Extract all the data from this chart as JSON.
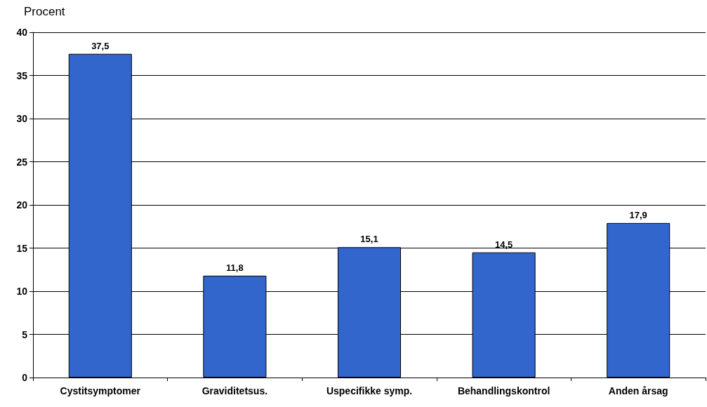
{
  "chart_data": {
    "type": "bar",
    "ylabel": "Procent",
    "categories": [
      "Cystitsymptomer",
      "Graviditetsus.",
      "Uspecifikke symp.",
      "Behandlingskontrol",
      "Anden årsag"
    ],
    "values": [
      37.5,
      11.8,
      15.1,
      14.5,
      17.9
    ],
    "value_labels": [
      "37,5",
      "11,8",
      "15,1",
      "14,5",
      "17,9"
    ],
    "color": "#3366cc",
    "ylim": [
      0,
      40
    ],
    "yticks": [
      0,
      5,
      10,
      15,
      20,
      25,
      30,
      35,
      40
    ],
    "grid": "y"
  }
}
